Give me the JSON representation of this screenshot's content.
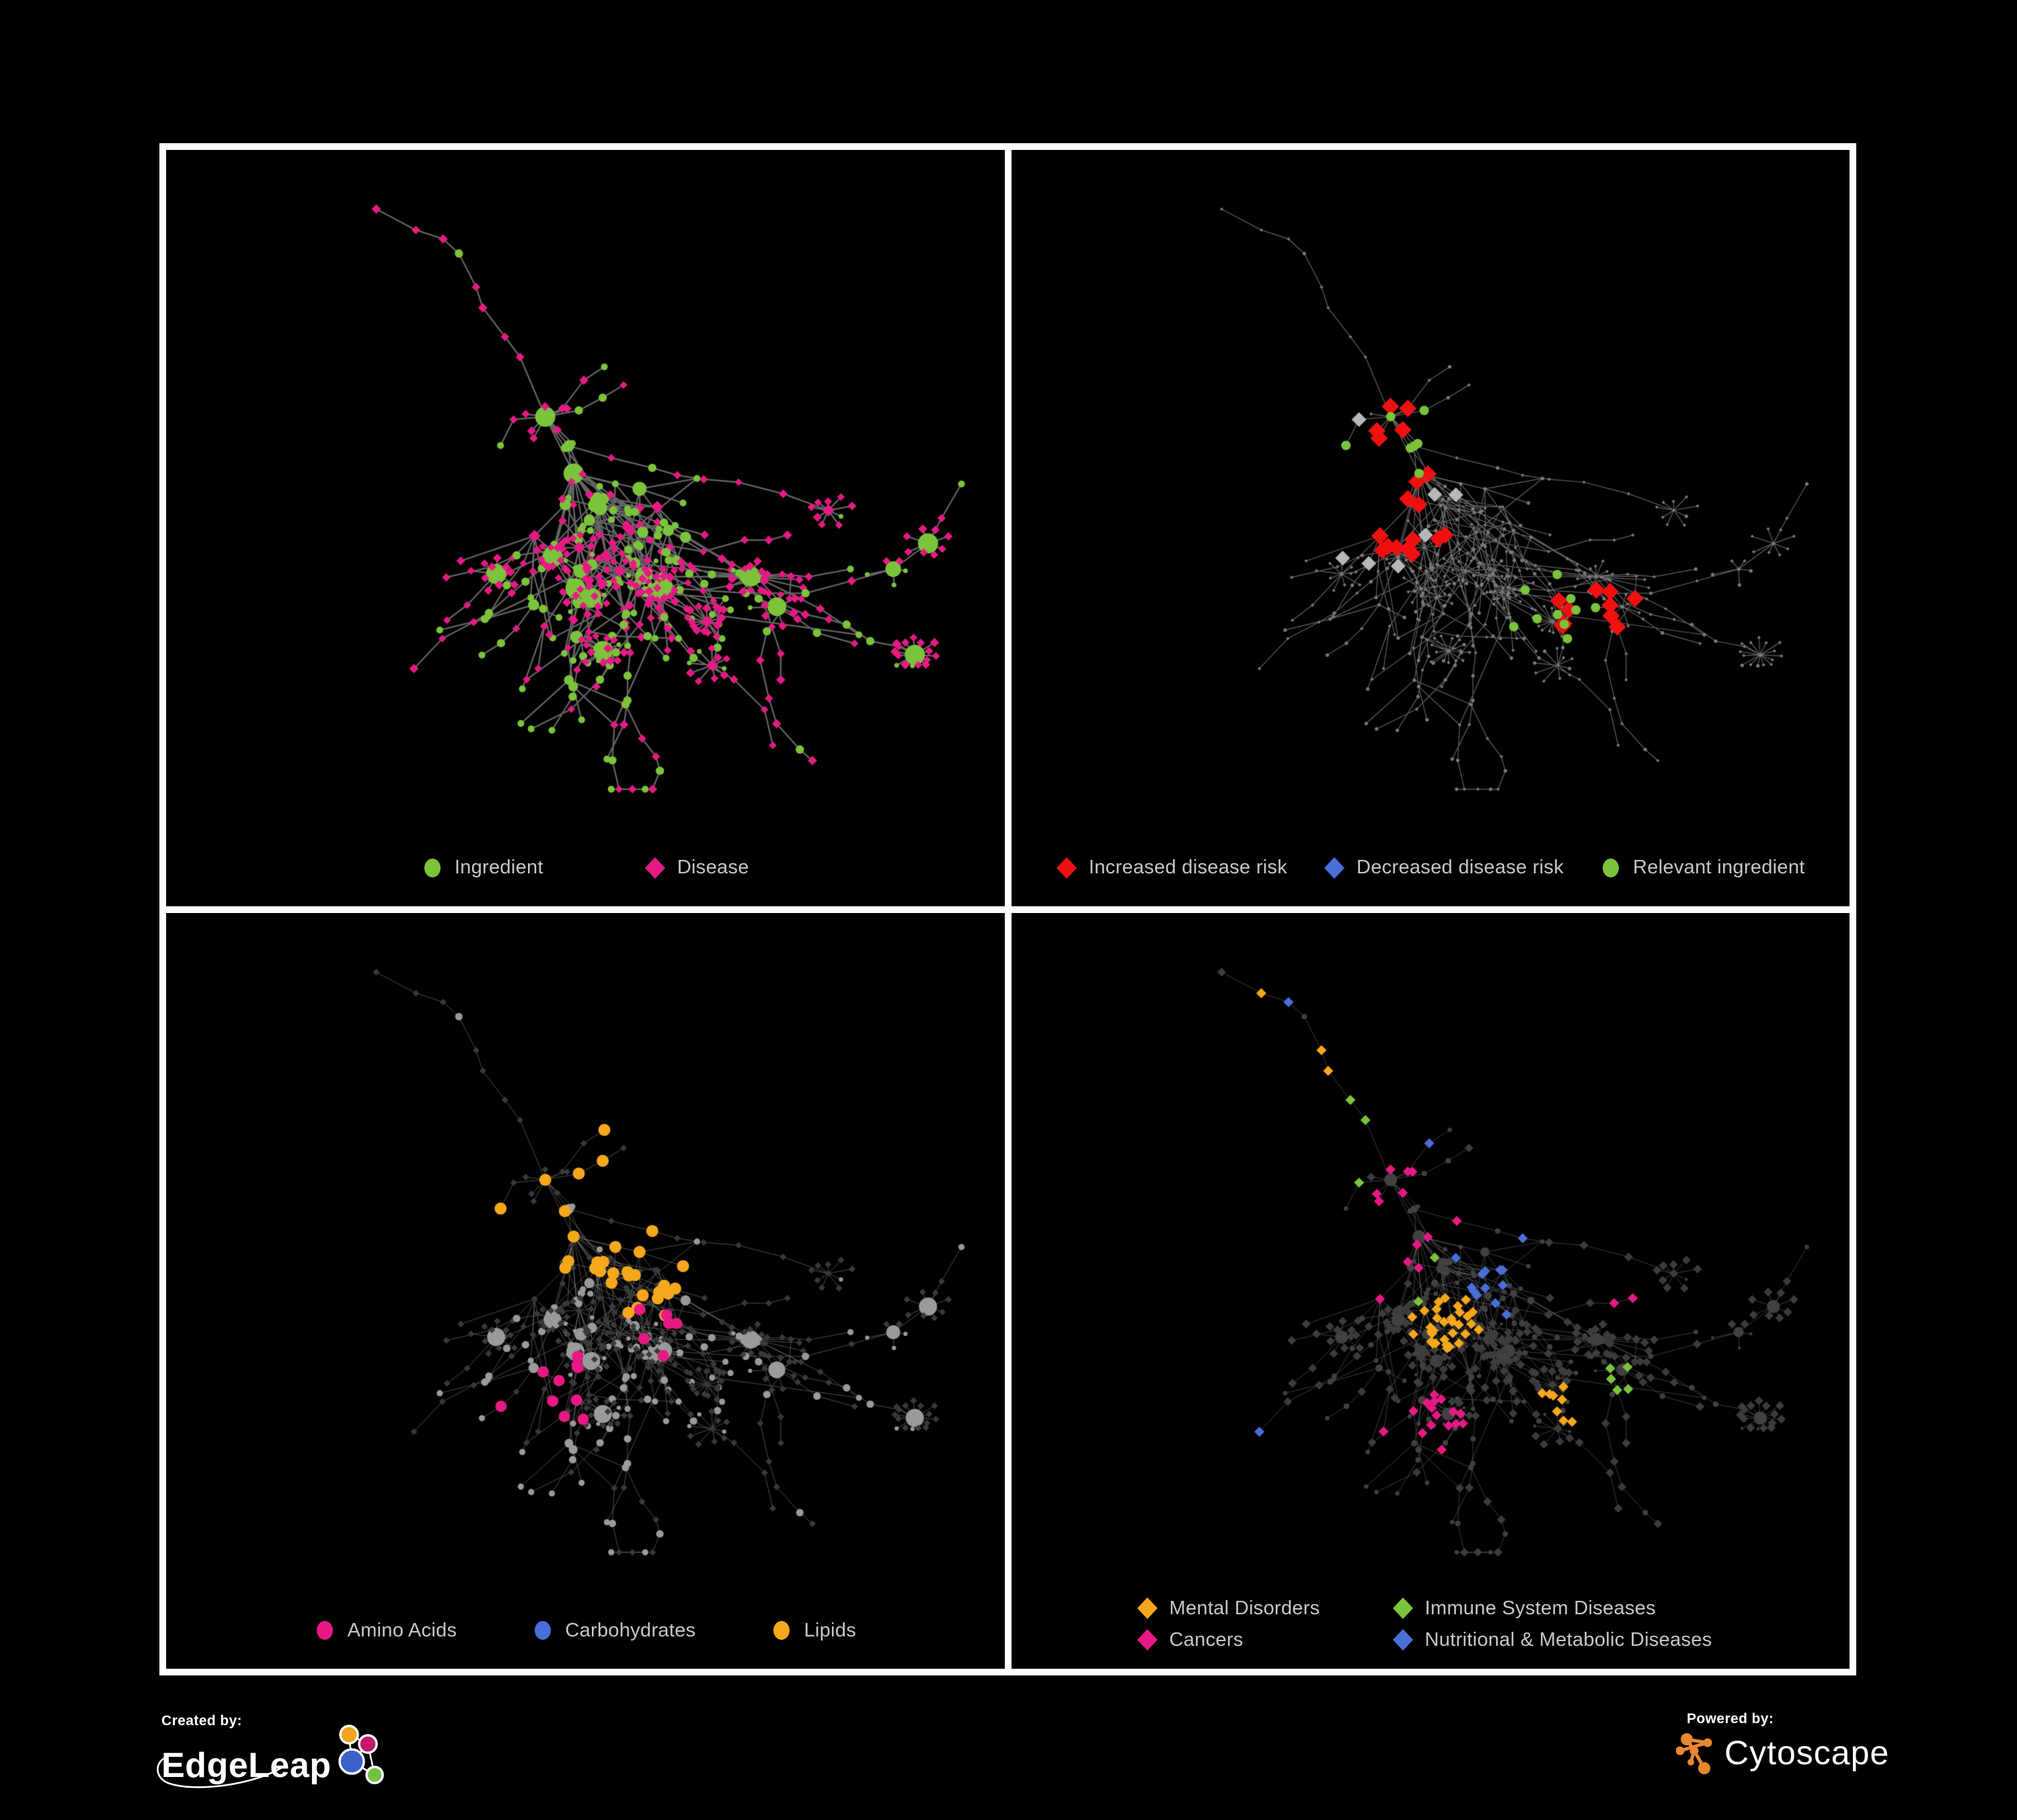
{
  "page": {
    "background": "#000000",
    "frame_color": "#ffffff",
    "legend_text_color": "#c6c6c6"
  },
  "panels": [
    {
      "name": "ingredient-disease",
      "legend": [
        {
          "label": "Ingredient",
          "shape": "circle",
          "color": "#7cc33c"
        },
        {
          "label": "Disease",
          "shape": "diamond",
          "color": "#e71984"
        }
      ],
      "legend_layout": "center-wide",
      "style": {
        "edge_color": "#696969",
        "edge_width": 2.3,
        "edge_alpha": 0.95,
        "base_circle": {
          "color": "#7cc33c",
          "scale": 1
        },
        "base_diamond": {
          "color": "#e71984",
          "scale": 1
        },
        "highlights": []
      }
    },
    {
      "name": "disease-risk",
      "legend": [
        {
          "label": "Increased disease risk",
          "shape": "diamond",
          "color": "#f01010"
        },
        {
          "label": "Decreased disease risk",
          "shape": "diamond",
          "color": "#4a6fd9"
        },
        {
          "label": "Relevant ingredient",
          "shape": "circle",
          "color": "#7cc33c"
        }
      ],
      "legend_layout": "center-narrow",
      "style": {
        "edge_color": "#6e6e6e",
        "edge_width": 1.2,
        "edge_alpha": 0.9,
        "base_circle": {
          "color": "#7a7a7a",
          "size": 2.6
        },
        "base_diamond": {
          "color": "#7a7a7a",
          "size": 2.6
        },
        "highlights": [
          {
            "color": "#f01010",
            "shape": "diamond",
            "target": "diamond",
            "size": 13,
            "count": 28,
            "regions": [
              [
                0.45,
                0.5,
                0.13
              ],
              [
                0.28,
                0.42,
                0.08
              ],
              [
                0.6,
                0.44,
                0.07
              ],
              [
                0.71,
                0.72,
                0.06
              ],
              [
                0.31,
                0.32,
                0.04
              ]
            ]
          },
          {
            "color": "#4a6fd9",
            "shape": "diamond",
            "target": "diamond",
            "size": 11,
            "count": 7,
            "regions": [
              [
                0.25,
                0.45,
                0.07
              ],
              [
                0.82,
                0.34,
                0.04
              ]
            ]
          },
          {
            "color": "#b8b8b8",
            "shape": "diamond",
            "target": "diamond",
            "size": 11,
            "count": 7,
            "regions": [
              [
                0.4,
                0.5,
                0.17
              ]
            ]
          },
          {
            "color": "#7cc33c",
            "shape": "circle",
            "target": "circle",
            "size": 7,
            "count": 26,
            "regions": [
              [
                0.42,
                0.45,
                0.12
              ],
              [
                0.27,
                0.37,
                0.09
              ],
              [
                0.66,
                0.71,
                0.07
              ],
              [
                0.79,
                0.36,
                0.04
              ],
              [
                0.13,
                0.48,
                0.04
              ]
            ]
          }
        ]
      }
    },
    {
      "name": "nutrient-classes",
      "legend": [
        {
          "label": "Amino Acids",
          "shape": "circle",
          "color": "#e71984"
        },
        {
          "label": "Carbohydrates",
          "shape": "circle",
          "color": "#4a6fd9"
        },
        {
          "label": "Lipids",
          "shape": "circle",
          "color": "#f5a81c"
        }
      ],
      "legend_layout": "center-med",
      "style": {
        "edge_color": "#9a9a9a",
        "edge_width": 1.0,
        "edge_alpha": 0.5,
        "base_circle": {
          "color": "#9a9a9a",
          "scale": 0.9
        },
        "base_diamond": {
          "color": "#3a3a3a",
          "size": 5
        },
        "highlights": [
          {
            "color": "#f5a81c",
            "shape": "circle",
            "target": "circle",
            "size": 9,
            "count": 60,
            "regions": [
              [
                0.52,
                0.27,
                0.14
              ],
              [
                0.4,
                0.4,
                0.1
              ],
              [
                0.47,
                0.52,
                0.06
              ],
              [
                0.57,
                0.55,
                0.08
              ],
              [
                0.23,
                0.56,
                0.05
              ],
              [
                0.63,
                0.45,
                0.05
              ]
            ]
          },
          {
            "color": "#e71984",
            "shape": "circle",
            "target": "circle",
            "size": 8.5,
            "count": 16,
            "regions": [
              [
                0.1,
                0.32,
                0.07
              ],
              [
                0.35,
                0.3,
                0.05
              ],
              [
                0.22,
                0.7,
                0.08
              ],
              [
                0.46,
                0.74,
                0.09
              ],
              [
                0.62,
                0.62,
                0.07
              ],
              [
                0.85,
                0.33,
                0.05
              ],
              [
                0.4,
                0.06,
                0.05
              ]
            ]
          },
          {
            "color": "#4a6fd9",
            "shape": "circle",
            "target": "circle",
            "size": 8.5,
            "count": 9,
            "regions": [
              [
                0.48,
                0.28,
                0.1
              ],
              [
                0.11,
                0.3,
                0.04
              ],
              [
                0.78,
                0.62,
                0.05
              ],
              [
                0.43,
                0.47,
                0.05
              ]
            ]
          }
        ]
      }
    },
    {
      "name": "disease-classes",
      "legend": [
        {
          "label": "Mental Disorders",
          "shape": "diamond",
          "color": "#f5a81c"
        },
        {
          "label": "Immune System Diseases",
          "shape": "diamond",
          "color": "#7cc33c"
        },
        {
          "label": "Cancers",
          "shape": "diamond",
          "color": "#e71984"
        },
        {
          "label": "Nutritional & Metabolic Diseases",
          "shape": "diamond",
          "color": "#4a6fd9"
        }
      ],
      "legend_layout": "grid-2col",
      "style": {
        "edge_color": "#a0a0a0",
        "edge_width": 0.9,
        "edge_alpha": 0.42,
        "base_circle": {
          "color": "#414141",
          "scale": 0.65
        },
        "base_diamond": {
          "color": "#3c3c3c",
          "size": 6.5
        },
        "highlights": [
          {
            "color": "#f5a81c",
            "shape": "diamond",
            "target": "diamond",
            "size": 7.5,
            "count": 78,
            "regions": [
              [
                0.22,
                0.45,
                0.13
              ],
              [
                0.28,
                0.12,
                0.04
              ],
              [
                0.38,
                0.22,
                0.05
              ],
              [
                0.14,
                0.68,
                0.06
              ],
              [
                0.52,
                0.62,
                0.05
              ],
              [
                0.66,
                0.76,
                0.04
              ]
            ]
          },
          {
            "color": "#e71984",
            "shape": "diamond",
            "target": "diamond",
            "size": 7.5,
            "count": 52,
            "regions": [
              [
                0.45,
                0.48,
                0.11
              ],
              [
                0.4,
                0.55,
                0.08
              ],
              [
                0.87,
                0.27,
                0.05
              ],
              [
                0.24,
                0.12,
                0.04
              ],
              [
                0.26,
                0.66,
                0.05
              ],
              [
                0.49,
                0.79,
                0.06
              ],
              [
                0.75,
                0.6,
                0.04
              ]
            ]
          },
          {
            "color": "#4a6fd9",
            "shape": "diamond",
            "target": "diamond",
            "size": 7.5,
            "count": 58,
            "regions": [
              [
                0.4,
                0.1,
                0.12
              ],
              [
                0.3,
                0.22,
                0.08
              ],
              [
                0.76,
                0.3,
                0.08
              ],
              [
                0.8,
                0.19,
                0.05
              ],
              [
                0.57,
                0.56,
                0.06
              ],
              [
                0.62,
                0.46,
                0.05
              ],
              [
                0.26,
                0.8,
                0.07
              ],
              [
                0.15,
                0.12,
                0.05
              ],
              [
                0.47,
                0.34,
                0.06
              ]
            ]
          },
          {
            "color": "#7cc33c",
            "shape": "diamond",
            "target": "diamond",
            "size": 7.5,
            "count": 10,
            "regions": [
              [
                0.38,
                0.3,
                0.12
              ],
              [
                0.35,
                0.48,
                0.1
              ],
              [
                0.5,
                0.52,
                0.08
              ],
              [
                0.24,
                0.7,
                0.05
              ],
              [
                0.49,
                0.8,
                0.05
              ],
              [
                0.72,
                0.72,
                0.05
              ]
            ]
          }
        ]
      }
    }
  ],
  "network": {
    "seed": 1337,
    "backbone": 150,
    "chains": 40,
    "crosslinks": 26
  },
  "footer": {
    "created_by": {
      "label": "Created by:",
      "brand": "EdgeLeap"
    },
    "powered_by": {
      "label": "Powered by:",
      "brand": "Cytoscape"
    },
    "edgeleap_colors": {
      "orange": "#f2a51e",
      "magenta": "#c2186f",
      "blue": "#3c62c9",
      "green": "#74c044"
    },
    "cytoscape_color": "#e8872f"
  }
}
